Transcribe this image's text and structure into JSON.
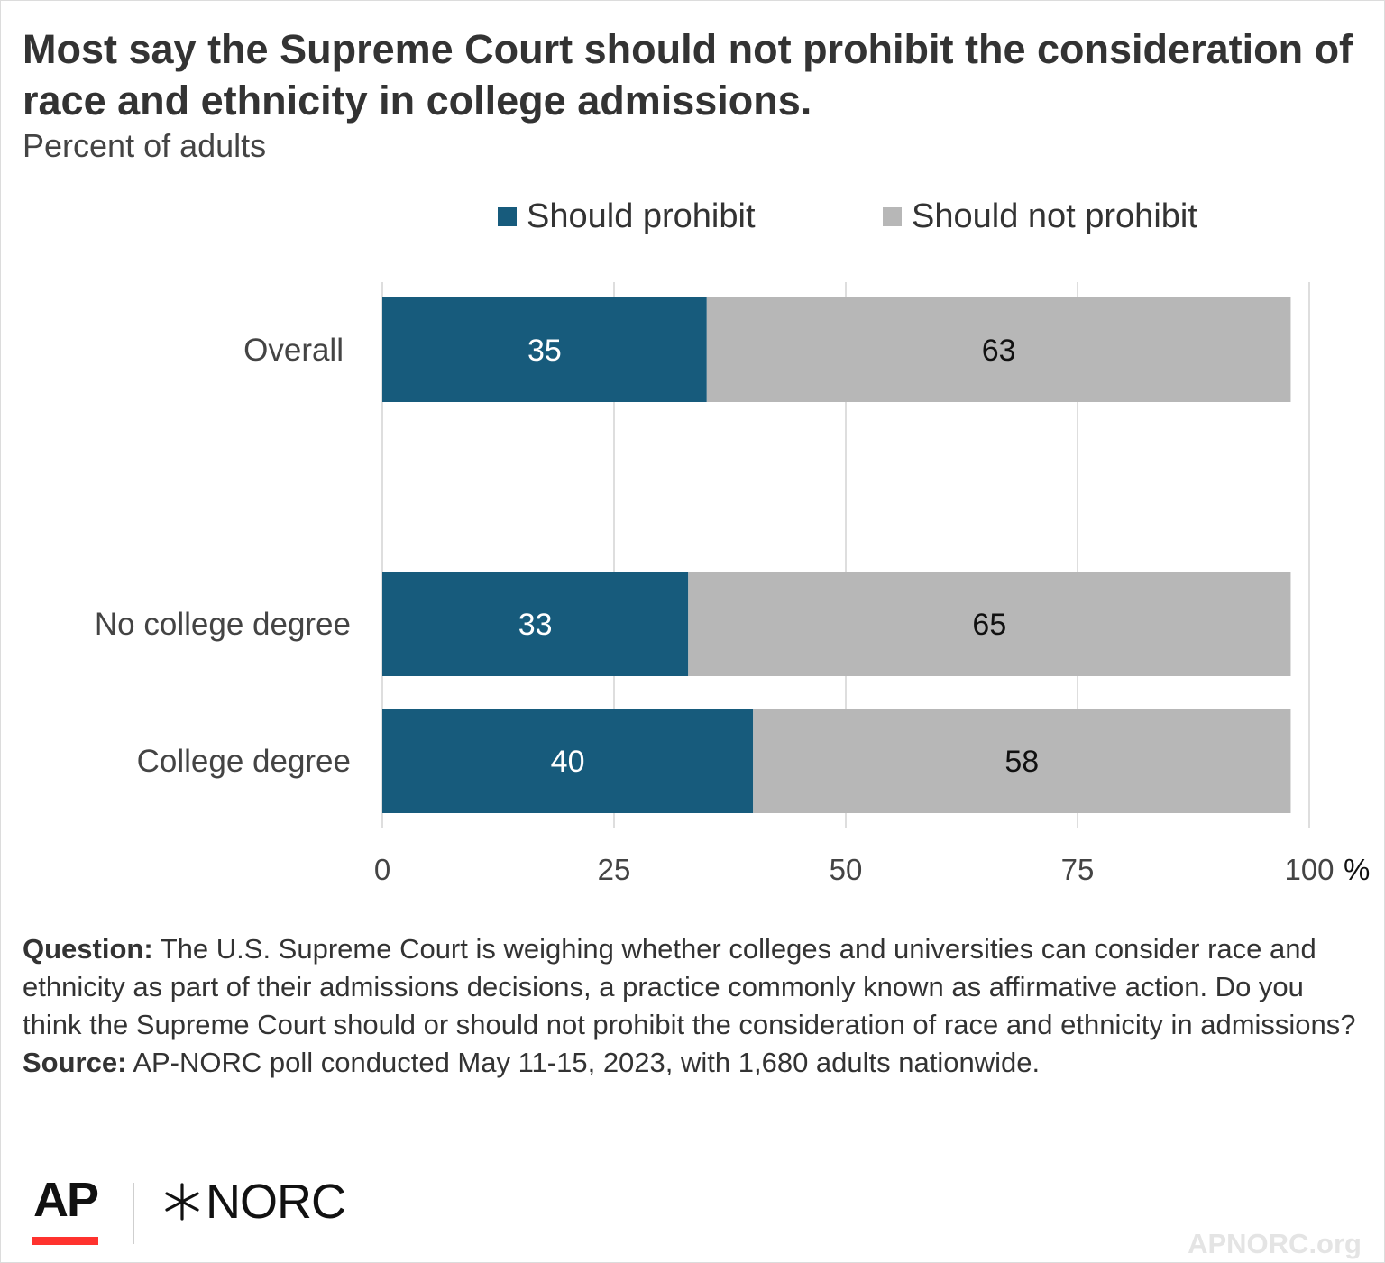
{
  "title": "Most say the Supreme Court should not prohibit the consideration of race and ethnicity in college admissions.",
  "subtitle": "Percent of adults",
  "colors": {
    "prohibit": "#175b7c",
    "not_prohibit": "#b7b7b7"
  },
  "chart_data": {
    "type": "bar",
    "orientation": "horizontal",
    "stacked": true,
    "categories": [
      "Overall",
      "No college degree",
      "College degree"
    ],
    "series": [
      {
        "name": "Should prohibit",
        "values": [
          35,
          33,
          40
        ]
      },
      {
        "name": "Should not prohibit",
        "values": [
          63,
          65,
          58
        ]
      }
    ],
    "xlim": [
      0,
      100
    ],
    "xticks": [
      "0",
      "25",
      "50",
      "75",
      "100"
    ],
    "x_unit": "%",
    "grid": true,
    "legend": "top"
  },
  "footnote": {
    "question_label": "Question:",
    "question_text": "The U.S. Supreme Court is weighing whether colleges and universities can consider race and ethnicity as part of their admissions decisions, a practice commonly known as affirmative action. Do you think the Supreme Court should or should not prohibit the consideration of race and ethnicity in admissions?",
    "source_label": "Source:",
    "source_text": "AP-NORC poll conducted May 11-15, 2023, with 1,680 adults nationwide."
  },
  "logos": {
    "ap": "AP",
    "norc": "NORC",
    "norc_mark": "star-mark-icon"
  },
  "site": "APNORC.org"
}
